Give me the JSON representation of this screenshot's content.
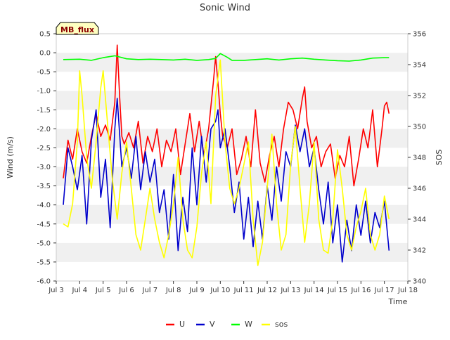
{
  "chart_data": {
    "type": "line",
    "title": "Sonic Wind",
    "xlabel": "Time",
    "ylabel": "Wind (m/s)",
    "y2label": "SOS",
    "site_badge": "MB_flux",
    "xlim": [
      3,
      18
    ],
    "ylim": [
      -6.0,
      0.5
    ],
    "y2lim": [
      340,
      356
    ],
    "xticks": [
      3,
      4,
      5,
      6,
      7,
      8,
      9,
      10,
      11,
      12,
      13,
      14,
      15,
      16,
      17,
      18
    ],
    "xtick_labels": [
      "Jul 3",
      "Jul 4",
      "Jul 5",
      "Jul 6",
      "Jul 7",
      "Jul 8",
      "Jul 9",
      "Jul 10",
      "Jul 11",
      "Jul 12",
      "Jul 13",
      "Jul 14",
      "Jul 15",
      "Jul 16",
      "Jul 17",
      "Jul 18"
    ],
    "yticks": [
      -6.0,
      -5.5,
      -5.0,
      -4.5,
      -4.0,
      -3.5,
      -3.0,
      -2.5,
      -2.0,
      -1.5,
      -1.0,
      -0.5,
      0.0,
      0.5
    ],
    "ytick_labels": [
      "-6.0",
      "-5.5",
      "-5.0",
      "-4.5",
      "-4.0",
      "-3.5",
      "-3.0",
      "-2.5",
      "-2.0",
      "-1.5",
      "-1.0",
      "-0.5",
      "0.0",
      "0.5"
    ],
    "y2ticks": [
      340,
      342,
      344,
      346,
      348,
      350,
      352,
      354,
      356
    ],
    "y2tick_labels": [
      "340",
      "342",
      "344",
      "346",
      "348",
      "350",
      "352",
      "354",
      "356"
    ],
    "legend_position": "bottom-center",
    "series": [
      {
        "name": "U",
        "axis": "left",
        "color": "#ff0000",
        "x": [
          3.3,
          3.5,
          3.7,
          3.9,
          4.1,
          4.3,
          4.5,
          4.7,
          4.9,
          5.1,
          5.3,
          5.5,
          5.6,
          5.7,
          5.8,
          5.9,
          6.1,
          6.3,
          6.5,
          6.7,
          6.9,
          7.1,
          7.3,
          7.5,
          7.7,
          7.9,
          8.1,
          8.3,
          8.5,
          8.7,
          8.9,
          9.1,
          9.3,
          9.5,
          9.7,
          9.8,
          9.9,
          10.0,
          10.1,
          10.3,
          10.5,
          10.7,
          10.9,
          11.1,
          11.3,
          11.5,
          11.7,
          11.9,
          12.1,
          12.3,
          12.5,
          12.7,
          12.9,
          13.1,
          13.3,
          13.5,
          13.6,
          13.7,
          13.9,
          14.1,
          14.3,
          14.5,
          14.7,
          14.9,
          15.1,
          15.3,
          15.5,
          15.7,
          15.9,
          16.1,
          16.3,
          16.5,
          16.7,
          16.9,
          17.0,
          17.1,
          17.2
        ],
        "y": [
          -3.3,
          -2.3,
          -2.8,
          -2.0,
          -2.6,
          -2.9,
          -2.2,
          -1.6,
          -2.2,
          -1.9,
          -2.3,
          -1.3,
          0.2,
          -1.1,
          -2.2,
          -2.4,
          -2.1,
          -2.5,
          -1.8,
          -2.9,
          -2.2,
          -2.6,
          -2.0,
          -3.0,
          -2.3,
          -2.6,
          -2.0,
          -3.2,
          -2.4,
          -1.6,
          -2.6,
          -1.8,
          -2.7,
          -2.0,
          -0.8,
          -0.1,
          -0.8,
          -1.6,
          -2.2,
          -2.5,
          -2.0,
          -3.2,
          -2.8,
          -2.2,
          -3.0,
          -1.5,
          -2.9,
          -3.4,
          -2.7,
          -2.2,
          -3.0,
          -2.0,
          -1.3,
          -1.5,
          -2.0,
          -1.2,
          -0.9,
          -1.8,
          -2.5,
          -2.2,
          -3.0,
          -2.6,
          -2.4,
          -3.3,
          -2.7,
          -3.0,
          -2.2,
          -3.5,
          -2.8,
          -2.0,
          -2.5,
          -1.5,
          -3.0,
          -2.0,
          -1.4,
          -1.3,
          -1.6
        ]
      },
      {
        "name": "V",
        "axis": "left",
        "color": "#0000cc",
        "x": [
          3.3,
          3.5,
          3.7,
          3.9,
          4.1,
          4.3,
          4.5,
          4.7,
          4.9,
          5.1,
          5.3,
          5.5,
          5.6,
          5.8,
          6.0,
          6.2,
          6.4,
          6.6,
          6.8,
          7.0,
          7.2,
          7.4,
          7.6,
          7.8,
          8.0,
          8.2,
          8.4,
          8.6,
          8.8,
          9.0,
          9.2,
          9.4,
          9.6,
          9.8,
          9.9,
          10.0,
          10.2,
          10.4,
          10.6,
          10.8,
          11.0,
          11.2,
          11.4,
          11.6,
          11.8,
          12.0,
          12.2,
          12.4,
          12.6,
          12.8,
          13.0,
          13.2,
          13.4,
          13.6,
          13.8,
          14.0,
          14.2,
          14.4,
          14.6,
          14.8,
          15.0,
          15.2,
          15.4,
          15.6,
          15.8,
          16.0,
          16.2,
          16.4,
          16.6,
          16.8,
          17.0,
          17.2
        ],
        "y": [
          -4.0,
          -2.5,
          -3.0,
          -3.6,
          -2.7,
          -4.5,
          -2.3,
          -1.5,
          -3.8,
          -2.8,
          -4.6,
          -2.0,
          -1.2,
          -3.0,
          -2.5,
          -3.3,
          -2.2,
          -3.6,
          -2.6,
          -3.4,
          -2.8,
          -4.2,
          -3.6,
          -4.9,
          -3.2,
          -5.2,
          -3.8,
          -4.7,
          -2.5,
          -4.0,
          -2.2,
          -3.4,
          -2.0,
          -1.8,
          -1.5,
          -2.5,
          -2.0,
          -3.0,
          -4.2,
          -3.4,
          -4.9,
          -3.8,
          -5.1,
          -3.9,
          -4.9,
          -3.5,
          -4.4,
          -3.0,
          -3.9,
          -2.6,
          -3.0,
          -1.9,
          -2.6,
          -2.0,
          -3.0,
          -2.5,
          -3.6,
          -4.5,
          -3.4,
          -5.0,
          -4.0,
          -5.5,
          -4.4,
          -5.2,
          -4.0,
          -4.8,
          -3.9,
          -5.0,
          -4.2,
          -4.6,
          -3.9,
          -5.2
        ]
      },
      {
        "name": "W",
        "axis": "left",
        "color": "#00ff00",
        "x": [
          3.3,
          4.0,
          4.5,
          5.0,
          5.5,
          6.0,
          6.5,
          7.0,
          7.5,
          8.0,
          8.5,
          9.0,
          9.5,
          9.8,
          10.0,
          10.3,
          10.5,
          11.0,
          11.5,
          12.0,
          12.5,
          13.0,
          13.5,
          14.0,
          14.5,
          15.0,
          15.5,
          16.0,
          16.5,
          17.0,
          17.2
        ],
        "y": [
          -0.18,
          -0.17,
          -0.2,
          -0.13,
          -0.08,
          -0.16,
          -0.18,
          -0.17,
          -0.18,
          -0.19,
          -0.17,
          -0.2,
          -0.18,
          -0.15,
          -0.02,
          -0.12,
          -0.2,
          -0.2,
          -0.18,
          -0.16,
          -0.19,
          -0.16,
          -0.14,
          -0.17,
          -0.19,
          -0.21,
          -0.22,
          -0.19,
          -0.14,
          -0.13,
          -0.13
        ]
      },
      {
        "name": "sos",
        "axis": "right",
        "color": "#ffff00",
        "x": [
          3.3,
          3.5,
          3.7,
          3.9,
          4.0,
          4.1,
          4.3,
          4.5,
          4.7,
          4.9,
          5.0,
          5.2,
          5.4,
          5.6,
          5.8,
          6.0,
          6.2,
          6.4,
          6.6,
          6.8,
          7.0,
          7.2,
          7.4,
          7.6,
          7.8,
          8.0,
          8.2,
          8.4,
          8.6,
          8.8,
          9.0,
          9.2,
          9.4,
          9.6,
          9.8,
          10.0,
          10.2,
          10.4,
          10.6,
          10.8,
          11.0,
          11.2,
          11.4,
          11.6,
          11.8,
          12.0,
          12.2,
          12.4,
          12.6,
          12.8,
          13.0,
          13.2,
          13.4,
          13.6,
          13.8,
          14.0,
          14.2,
          14.4,
          14.6,
          14.8,
          15.0,
          15.2,
          15.4,
          15.6,
          15.8,
          16.0,
          16.2,
          16.4,
          16.6,
          16.8,
          17.0,
          17.2
        ],
        "y": [
          343.7,
          343.5,
          345.0,
          349.0,
          353.6,
          352.0,
          348.0,
          346.0,
          349.0,
          352.5,
          353.6,
          350.0,
          346.5,
          344.0,
          347.0,
          349.0,
          346.0,
          343.0,
          342.0,
          344.0,
          346.0,
          344.0,
          342.5,
          341.5,
          343.0,
          345.0,
          348.0,
          344.0,
          342.0,
          341.5,
          343.5,
          347.0,
          349.0,
          345.0,
          352.0,
          354.3,
          349.0,
          346.0,
          345.0,
          346.0,
          347.5,
          349.0,
          344.0,
          341.0,
          342.5,
          346.0,
          349.5,
          345.0,
          342.0,
          343.0,
          347.5,
          350.0,
          346.0,
          342.5,
          345.0,
          349.0,
          344.0,
          342.0,
          341.8,
          344.0,
          348.5,
          346.0,
          343.0,
          342.0,
          343.5,
          344.5,
          346.0,
          343.0,
          342.0,
          343.0,
          345.5,
          344.0
        ]
      }
    ]
  }
}
